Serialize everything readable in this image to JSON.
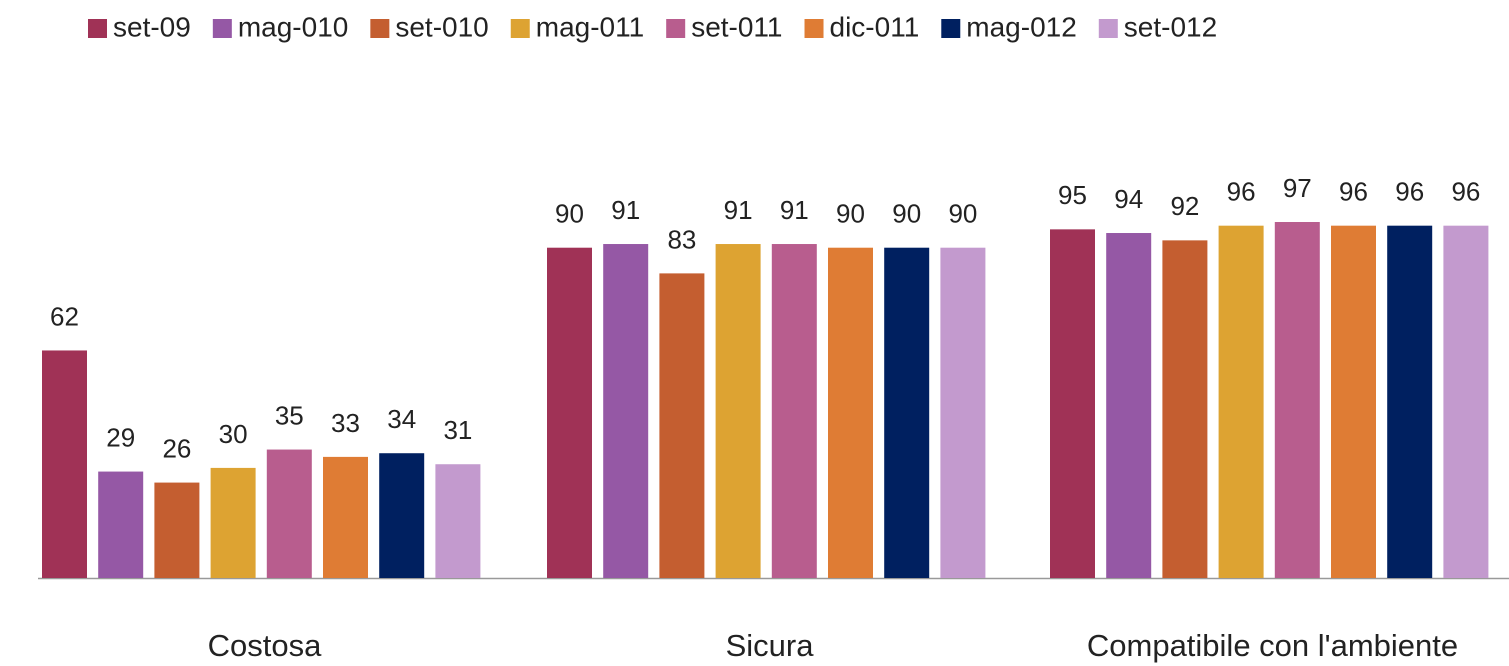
{
  "chart_data": {
    "type": "bar",
    "categories": [
      "Costosa",
      "Sicura",
      "Compatibile con l'ambiente"
    ],
    "series": [
      {
        "name": "set-09",
        "color": "#a03256",
        "values": [
          62,
          90,
          95
        ]
      },
      {
        "name": "mag-010",
        "color": "#9558a5",
        "values": [
          29,
          91,
          94
        ]
      },
      {
        "name": "set-010",
        "color": "#c45e30",
        "values": [
          26,
          83,
          92
        ]
      },
      {
        "name": "mag-011",
        "color": "#dda332",
        "values": [
          30,
          91,
          96
        ]
      },
      {
        "name": "set-011",
        "color": "#b85d8e",
        "values": [
          35,
          91,
          97
        ]
      },
      {
        "name": "dic-011",
        "color": "#df7c34",
        "values": [
          33,
          90,
          96
        ]
      },
      {
        "name": "mag-012",
        "color": "#002060",
        "values": [
          34,
          90,
          96
        ]
      },
      {
        "name": "set-012",
        "color": "#c39ace",
        "values": [
          31,
          90,
          96
        ]
      }
    ],
    "legend": "top"
  }
}
